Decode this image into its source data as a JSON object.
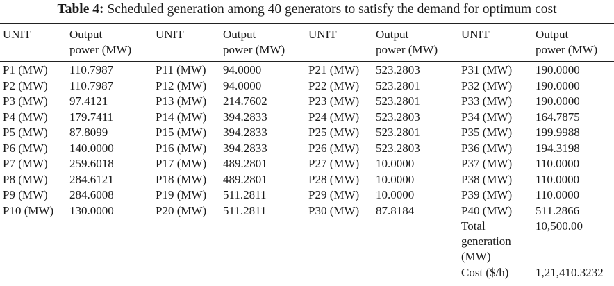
{
  "caption": {
    "label": "Table 4:",
    "text": "Scheduled generation among 40 generators to satisfy the demand for optimum cost"
  },
  "headers": {
    "unit": "UNIT",
    "output": "Output\npower (MW)"
  },
  "groups": [
    {
      "rows": [
        {
          "unit": "P1 (MW)",
          "value": "110.7987"
        },
        {
          "unit": "P2 (MW)",
          "value": "110.7987"
        },
        {
          "unit": "P3 (MW)",
          "value": "97.4121"
        },
        {
          "unit": "P4 (MW)",
          "value": "179.7411"
        },
        {
          "unit": "P5 (MW)",
          "value": "87.8099"
        },
        {
          "unit": "P6 (MW)",
          "value": "140.0000"
        },
        {
          "unit": "P7 (MW)",
          "value": "259.6018"
        },
        {
          "unit": "P8 (MW)",
          "value": "284.6121"
        },
        {
          "unit": "P9 (MW)",
          "value": "284.6008"
        },
        {
          "unit": "P10 (MW)",
          "value": "130.0000"
        }
      ]
    },
    {
      "rows": [
        {
          "unit": "P11 (MW)",
          "value": "94.0000"
        },
        {
          "unit": "P12 (MW)",
          "value": "94.0000"
        },
        {
          "unit": "P13 (MW)",
          "value": "214.7602"
        },
        {
          "unit": "P14 (MW)",
          "value": "394.2833"
        },
        {
          "unit": "P15 (MW)",
          "value": "394.2833"
        },
        {
          "unit": "P16 (MW)",
          "value": "394.2833"
        },
        {
          "unit": "P17 (MW)",
          "value": "489.2801"
        },
        {
          "unit": "P18 (MW)",
          "value": "489.2801"
        },
        {
          "unit": "P19 (MW)",
          "value": "511.2811"
        },
        {
          "unit": "P20 (MW)",
          "value": "511.2811"
        }
      ]
    },
    {
      "rows": [
        {
          "unit": "P21 (MW)",
          "value": "523.2803"
        },
        {
          "unit": "P22 (MW)",
          "value": "523.2801"
        },
        {
          "unit": "P23 (MW)",
          "value": "523.2801"
        },
        {
          "unit": "P24 (MW)",
          "value": "523.2803"
        },
        {
          "unit": "P25 (MW)",
          "value": "523.2801"
        },
        {
          "unit": "P26 (MW)",
          "value": "523.2803"
        },
        {
          "unit": "P27 (MW)",
          "value": "10.0000"
        },
        {
          "unit": "P28 (MW)",
          "value": "10.0000"
        },
        {
          "unit": "P29 (MW)",
          "value": "10.0000"
        },
        {
          "unit": "P30 (MW)",
          "value": "87.8184"
        }
      ]
    },
    {
      "rows": [
        {
          "unit": "P31 (MW)",
          "value": "190.0000"
        },
        {
          "unit": "P32 (MW)",
          "value": "190.0000"
        },
        {
          "unit": "P33 (MW)",
          "value": "190.0000"
        },
        {
          "unit": "P34 (MW)",
          "value": "164.7875"
        },
        {
          "unit": "P35 (MW)",
          "value": "199.9988"
        },
        {
          "unit": "P36 (MW)",
          "value": "194.3198"
        },
        {
          "unit": "P37 (MW)",
          "value": "110.0000"
        },
        {
          "unit": "P38 (MW)",
          "value": "110.0000"
        },
        {
          "unit": "P39 (MW)",
          "value": "110.0000"
        },
        {
          "unit": "P40 (MW)",
          "value": "511.2866"
        }
      ]
    }
  ],
  "totals": {
    "generation_label": "Total\ngeneration\n(MW)",
    "generation_value": "10,500.00",
    "cost_label": "Cost ($/h)",
    "cost_value": "1,21,410.3232"
  }
}
